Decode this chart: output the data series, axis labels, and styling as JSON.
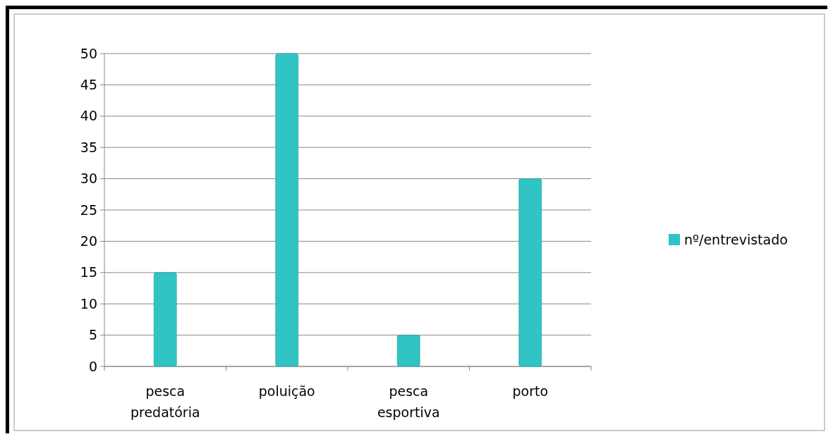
{
  "chart_data": {
    "type": "bar",
    "categories": [
      "pesca predatória",
      "poluição",
      "pesca esportiva",
      "porto"
    ],
    "series": [
      {
        "name": "nº/entrevistado",
        "color": "#30c4c4",
        "values": [
          15,
          50,
          5,
          30
        ]
      }
    ],
    "ylim": [
      0,
      50
    ],
    "yticks": [
      0,
      5,
      10,
      15,
      20,
      25,
      30,
      35,
      40,
      45,
      50
    ],
    "grid": "y",
    "legend": "right"
  }
}
